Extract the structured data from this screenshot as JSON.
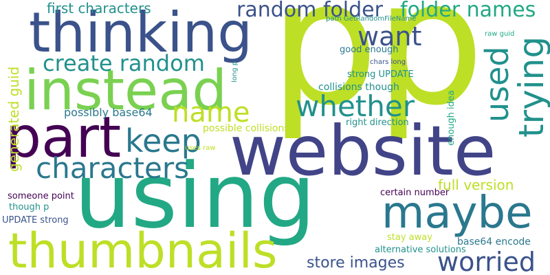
{
  "wordcloud": {
    "palette": {
      "purple": "#440154",
      "indigo": "#3b528b",
      "blue": "#414487",
      "teal": "#2a788e",
      "green": "#22a884",
      "lime": "#7ad151",
      "yellow": "#bddf26",
      "dark_teal": "#21918c"
    },
    "words": [
      {
        "text": "p",
        "color": "#bddf26"
      },
      {
        "text": "p",
        "color": "#bddf26"
      },
      {
        "text": "using",
        "color": "#22a884"
      },
      {
        "text": "website",
        "color": "#414487"
      },
      {
        "text": "thinking",
        "color": "#3b528b"
      },
      {
        "text": "instead",
        "color": "#7ad151"
      },
      {
        "text": "part",
        "color": "#440154"
      },
      {
        "text": "maybe",
        "color": "#2a788e"
      },
      {
        "text": "thumbnails",
        "color": "#bddf26"
      },
      {
        "text": "characters",
        "color": "#2a788e"
      },
      {
        "text": "random folder",
        "color": "#3b528b"
      },
      {
        "text": "folder names",
        "color": "#22a884"
      },
      {
        "text": "want",
        "color": "#3b528b"
      },
      {
        "text": "create random",
        "color": "#21918c"
      },
      {
        "text": "name",
        "color": "#bddf26"
      },
      {
        "text": "whether",
        "color": "#21918c"
      },
      {
        "text": "keep",
        "color": "#2a788e"
      },
      {
        "text": "worried",
        "color": "#3b528b"
      },
      {
        "text": "store images",
        "color": "#3b528b"
      },
      {
        "text": "full version",
        "color": "#bddf26"
      },
      {
        "text": "first characters",
        "color": "#21918c"
      },
      {
        "text": "possibly base64",
        "color": "#2a788e"
      },
      {
        "text": "generated guid",
        "color": "#bddf26"
      },
      {
        "text": "trying",
        "color": "#21918c"
      },
      {
        "text": "used",
        "color": "#21918c"
      },
      {
        "text": "enough idea",
        "color": "#22a884"
      },
      {
        "text": "long p",
        "color": "#21918c"
      },
      {
        "text": "path GetRandomFileName",
        "color": "#21918c"
      },
      {
        "text": "raw guid",
        "color": "#22a884"
      },
      {
        "text": "good enough",
        "color": "#2a788e"
      },
      {
        "text": "chars long",
        "color": "#3b528b"
      },
      {
        "text": "strong UPDATE",
        "color": "#21918c"
      },
      {
        "text": "collisions though",
        "color": "#21918c"
      },
      {
        "text": "possible collisions",
        "color": "#bddf26"
      },
      {
        "text": "right direction",
        "color": "#21918c"
      },
      {
        "text": "uses raw",
        "color": "#bddf26"
      },
      {
        "text": "someone point",
        "color": "#440154"
      },
      {
        "text": "though p",
        "color": "#21918c"
      },
      {
        "text": "UPDATE strong",
        "color": "#3b528b"
      },
      {
        "text": "certain number",
        "color": "#440154"
      },
      {
        "text": "stay away",
        "color": "#bddf26"
      },
      {
        "text": "alternative solutions",
        "color": "#21918c"
      },
      {
        "text": "base64 encode",
        "color": "#2a788e"
      }
    ]
  }
}
